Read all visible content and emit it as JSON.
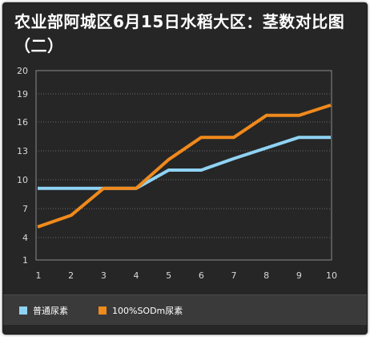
{
  "title": "农业部阿城区6月15日水稻大区：茎数对比图（二）",
  "legend": [
    {
      "label": "普通尿素",
      "color": "#8fd3f4"
    },
    {
      "label": "100%SODm尿素",
      "color": "#f08a1c"
    }
  ],
  "chart_data": {
    "type": "line",
    "title": "农业部阿城区6月15日水稻大区：茎数对比图（二）",
    "x": [
      1,
      2,
      3,
      4,
      5,
      6,
      7,
      8,
      9,
      10
    ],
    "y_ticks": [
      1,
      4,
      7,
      10,
      13,
      16,
      19,
      20
    ],
    "ylim": [
      1,
      20
    ],
    "grid": true,
    "legend_position": "bottom",
    "series": [
      {
        "name": "普通尿素",
        "color": "#8fd3f4",
        "values": [
          9.1,
          9.1,
          9.1,
          9.1,
          11.0,
          11.0,
          12.2,
          13.3,
          14.4,
          14.4
        ]
      },
      {
        "name": "100%SODm尿素",
        "color": "#f08a1c",
        "values": [
          5.1,
          6.3,
          9.1,
          9.1,
          12.1,
          14.4,
          14.4,
          16.7,
          16.7,
          17.8
        ]
      }
    ]
  }
}
